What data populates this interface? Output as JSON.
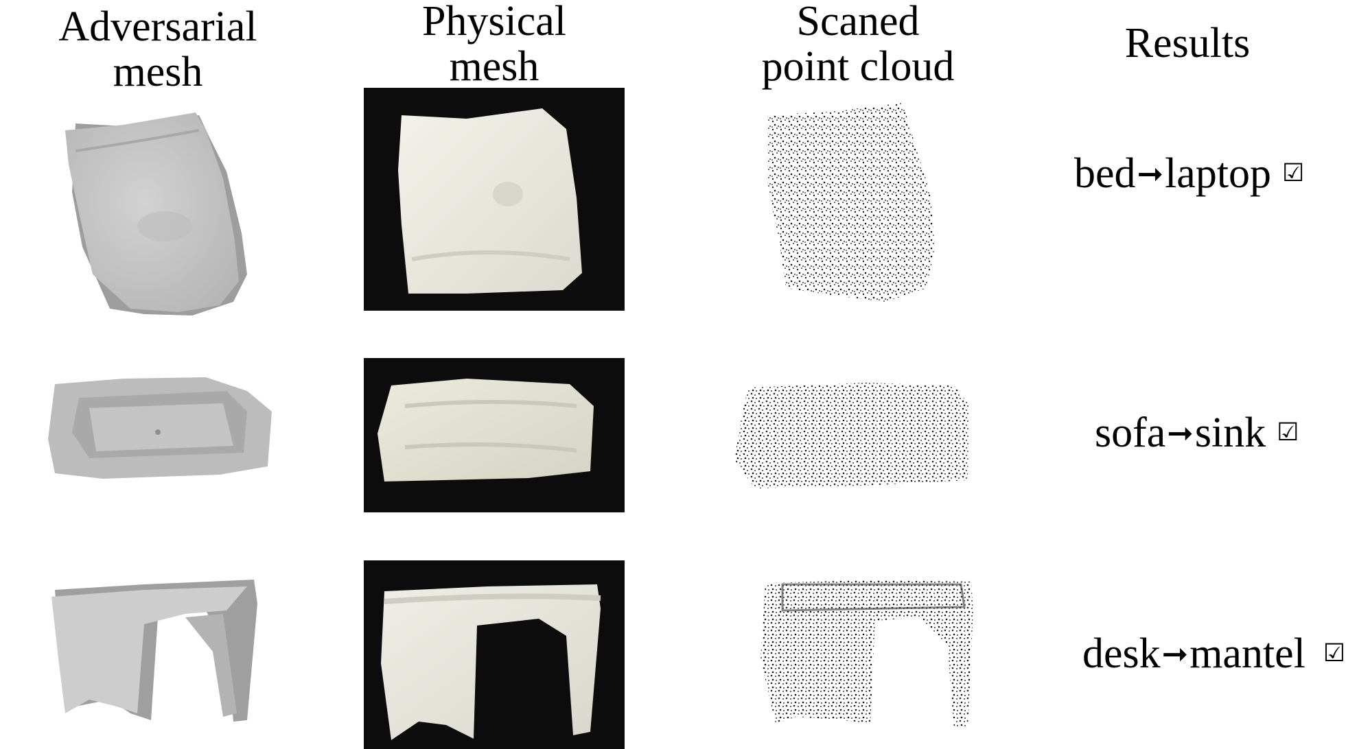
{
  "headers": {
    "adversarial": [
      "Adversarial",
      "mesh"
    ],
    "physical": [
      "Physical",
      "mesh"
    ],
    "scanned": [
      "Scaned",
      "point cloud"
    ],
    "results": "Results"
  },
  "rows": [
    {
      "from": "bed",
      "to": "laptop",
      "arrow": "➞",
      "check": "☑"
    },
    {
      "from": "sofa",
      "to": "sink",
      "arrow": "➞",
      "check": "☑"
    },
    {
      "from": "desk",
      "to": "mantel",
      "arrow": "➞",
      "check": "☑"
    }
  ],
  "colors": {
    "mesh_gray": "#c9c9c9",
    "mesh_shadow": "#9a9a9a",
    "photo_background": "#0c0c0c",
    "plastic_white": "#ecebe3",
    "point": "#222222"
  },
  "icons": [
    "right-arrow-icon",
    "checkbox-checked-icon"
  ]
}
